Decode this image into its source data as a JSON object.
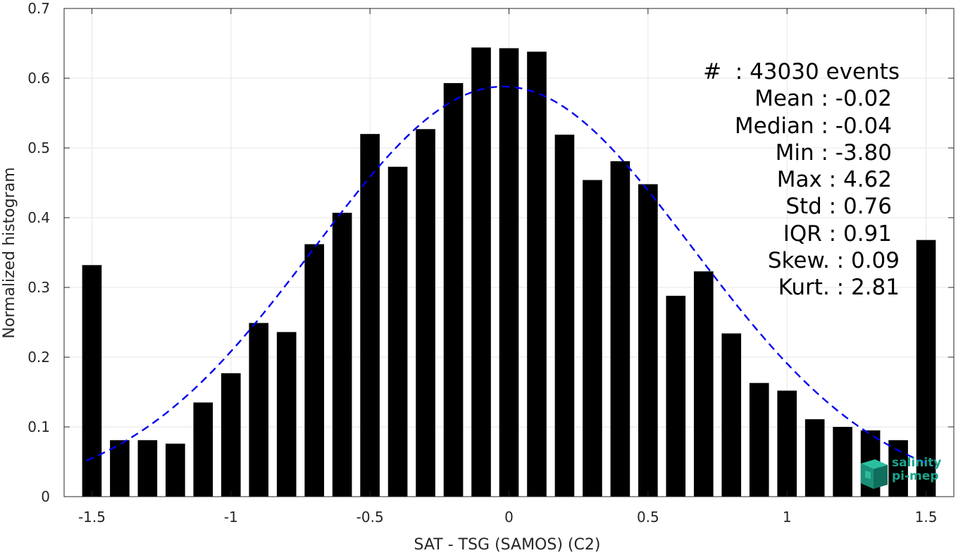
{
  "chart_data": {
    "type": "bar",
    "x": [
      -1.5,
      -1.4,
      -1.3,
      -1.2,
      -1.1,
      -1.0,
      -0.9,
      -0.8,
      -0.7,
      -0.6,
      -0.5,
      -0.4,
      -0.3,
      -0.2,
      -0.1,
      0.0,
      0.1,
      0.2,
      0.3,
      0.4,
      0.5,
      0.6,
      0.7,
      0.8,
      0.9,
      1.0,
      1.1,
      1.2,
      1.3,
      1.4,
      1.5
    ],
    "values": [
      0.332,
      0.081,
      0.081,
      0.076,
      0.135,
      0.177,
      0.249,
      0.236,
      0.362,
      0.407,
      0.52,
      0.473,
      0.527,
      0.593,
      0.644,
      0.643,
      0.638,
      0.519,
      0.454,
      0.481,
      0.448,
      0.288,
      0.323,
      0.234,
      0.163,
      0.152,
      0.111,
      0.1,
      0.095,
      0.081,
      0.368
    ],
    "bar_color": "#000000",
    "fit": {
      "type": "gaussian",
      "mean": -0.02,
      "std": 0.68,
      "amplitude": 0.588,
      "x_range": [
        -1.52,
        1.52
      ],
      "color": "#0000ee",
      "style": "dashed"
    },
    "xlabel": "SAT - TSG (SAMOS) (C2)",
    "ylabel": "Normalized histogram",
    "xlim": [
      -1.6,
      1.6
    ],
    "ylim": [
      0,
      0.7
    ],
    "xticks": [
      -1.5,
      -1,
      -0.5,
      0,
      0.5,
      1,
      1.5
    ],
    "xtick_labels": [
      "-1.5",
      "-1",
      "-0.5",
      "0",
      "0.5",
      "1",
      "1.5"
    ],
    "yticks": [
      0,
      0.1,
      0.2,
      0.3,
      0.4,
      0.5,
      0.6,
      0.7
    ],
    "ytick_labels": [
      "0",
      "0.1",
      "0.2",
      "0.3",
      "0.4",
      "0.5",
      "0.6",
      "0.7"
    ],
    "grid": true,
    "grid_color": "#e6e6e6",
    "annotations": [
      "#  : 43030 events",
      "Mean : -0.02",
      "Median : -0.04",
      "Min : -3.80",
      "Max : 4.62",
      "Std : 0.76",
      "IQR : 0.91",
      "Skew. : 0.09",
      "Kurt. : 2.81"
    ]
  },
  "logo": {
    "line1": "salinity",
    "line2": "pi-mep",
    "color": "#1aa58c"
  }
}
